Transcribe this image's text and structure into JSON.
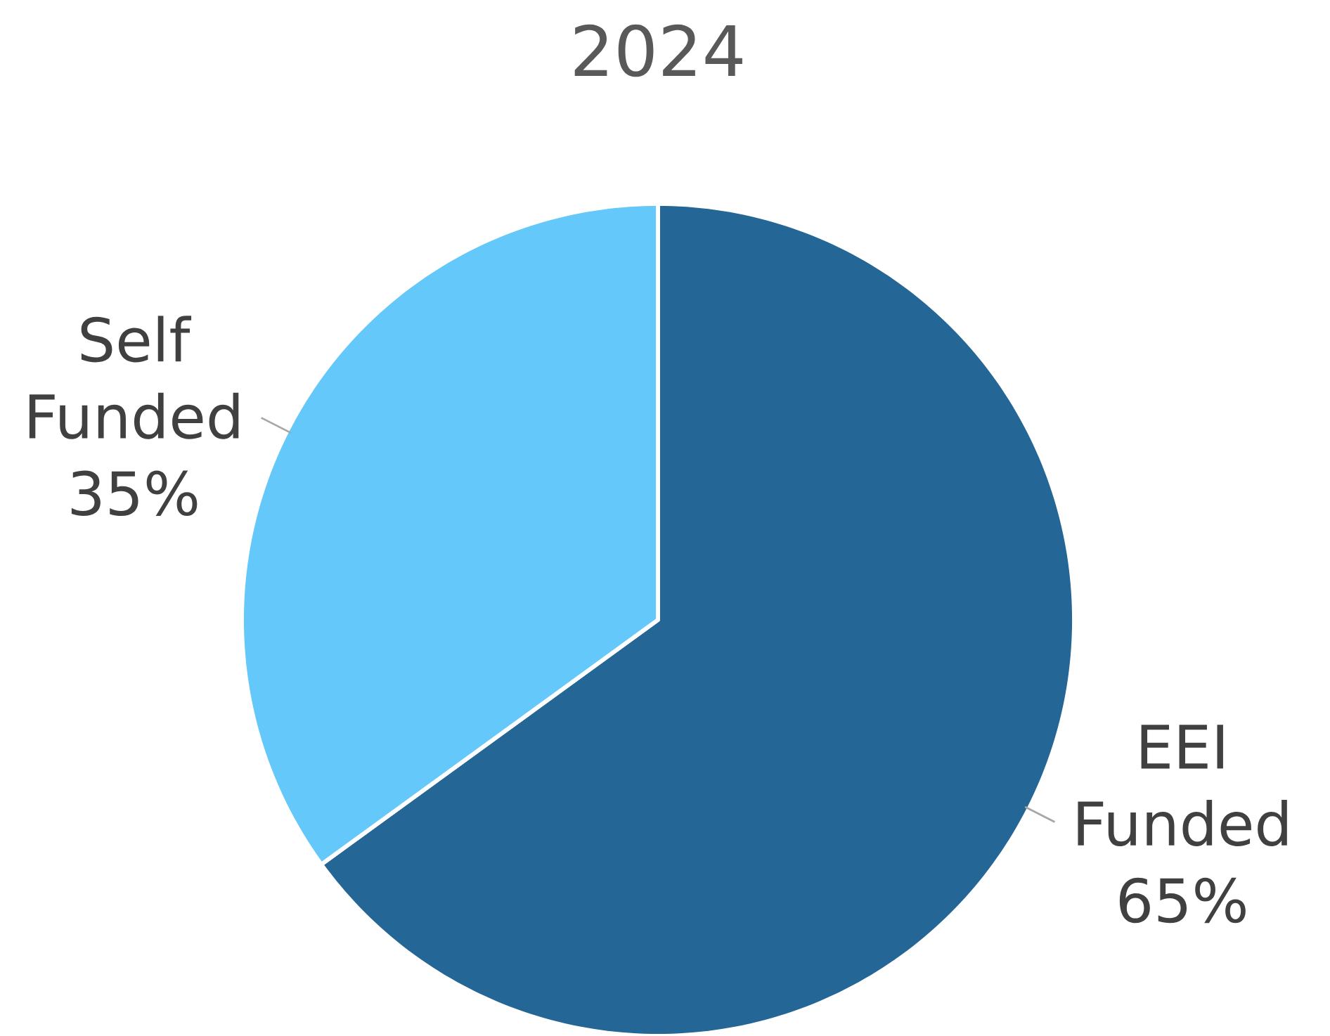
{
  "chart_data": {
    "type": "pie",
    "title": "2024",
    "categories": [
      "EEI Funded",
      "Self Funded"
    ],
    "values": [
      65,
      35
    ],
    "value_labels": [
      "65%",
      "35%"
    ],
    "colors": [
      "#246695",
      "#64c8fa"
    ]
  }
}
